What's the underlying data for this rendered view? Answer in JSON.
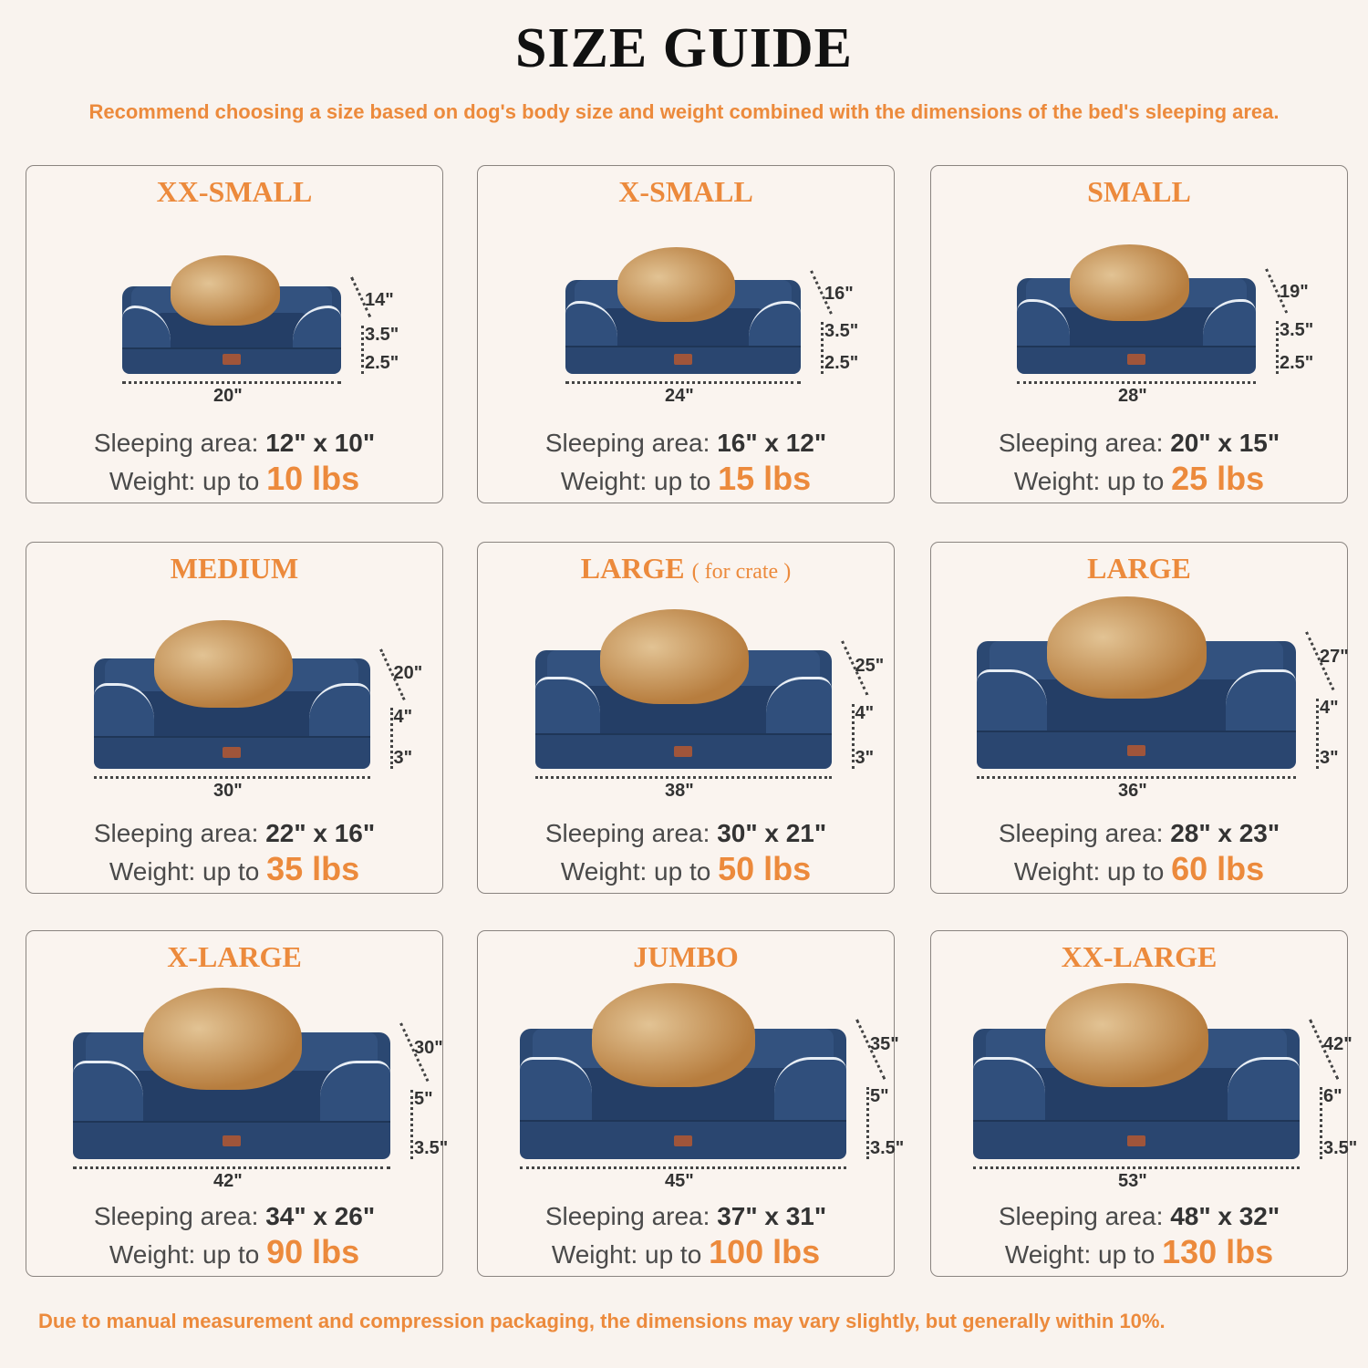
{
  "header": {
    "title": "SIZE GUIDE",
    "subtitle": "Recommend choosing a size based on dog's body size and weight combined with the dimensions of the bed's sleeping area."
  },
  "labels": {
    "sleeping_area": "Sleeping area:",
    "weight": "Weight: up to"
  },
  "cards": [
    {
      "title": "XX-SMALL",
      "note": "",
      "length": "20\"",
      "depth": "14\"",
      "h_top": "3.5\"",
      "h_bottom": "2.5\"",
      "sleeping_area": "12\" x 10\"",
      "weight": "10 lbs"
    },
    {
      "title": "X-SMALL",
      "note": "",
      "length": "24\"",
      "depth": "16\"",
      "h_top": "3.5\"",
      "h_bottom": "2.5\"",
      "sleeping_area": "16\" x 12\"",
      "weight": "15 lbs"
    },
    {
      "title": "SMALL",
      "note": "",
      "length": "28\"",
      "depth": "19\"",
      "h_top": "3.5\"",
      "h_bottom": "2.5\"",
      "sleeping_area": "20\" x 15\"",
      "weight": "25 lbs"
    },
    {
      "title": "MEDIUM",
      "note": "",
      "length": "30\"",
      "depth": "20\"",
      "h_top": "4\"",
      "h_bottom": "3\"",
      "sleeping_area": "22\" x 16\"",
      "weight": "35 lbs"
    },
    {
      "title": "LARGE",
      "note": "( for crate )",
      "length": "38\"",
      "depth": "25\"",
      "h_top": "4\"",
      "h_bottom": "3\"",
      "sleeping_area": "30\" x 21\"",
      "weight": "50 lbs"
    },
    {
      "title": "LARGE",
      "note": "",
      "length": "36\"",
      "depth": "27\"",
      "h_top": "4\"",
      "h_bottom": "3\"",
      "sleeping_area": "28\" x 23\"",
      "weight": "60 lbs"
    },
    {
      "title": "X-LARGE",
      "note": "",
      "length": "42\"",
      "depth": "30\"",
      "h_top": "5\"",
      "h_bottom": "3.5\"",
      "sleeping_area": "34\" x 26\"",
      "weight": "90 lbs"
    },
    {
      "title": "JUMBO",
      "note": "",
      "length": "45\"",
      "depth": "35\"",
      "h_top": "5\"",
      "h_bottom": "3.5\"",
      "sleeping_area": "37\" x 31\"",
      "weight": "100 lbs"
    },
    {
      "title": "XX-LARGE",
      "note": "",
      "length": "53\"",
      "depth": "42\"",
      "h_top": "6\"",
      "h_bottom": "3.5\"",
      "sleeping_area": "48\" x 32\"",
      "weight": "130 lbs"
    }
  ],
  "footer": "Due to manual measurement and compression packaging, the dimensions may vary slightly, but generally within 10%.",
  "colors": {
    "accent": "#ec8a3c",
    "bed": "#2b4872",
    "background": "#f9f3ee"
  }
}
